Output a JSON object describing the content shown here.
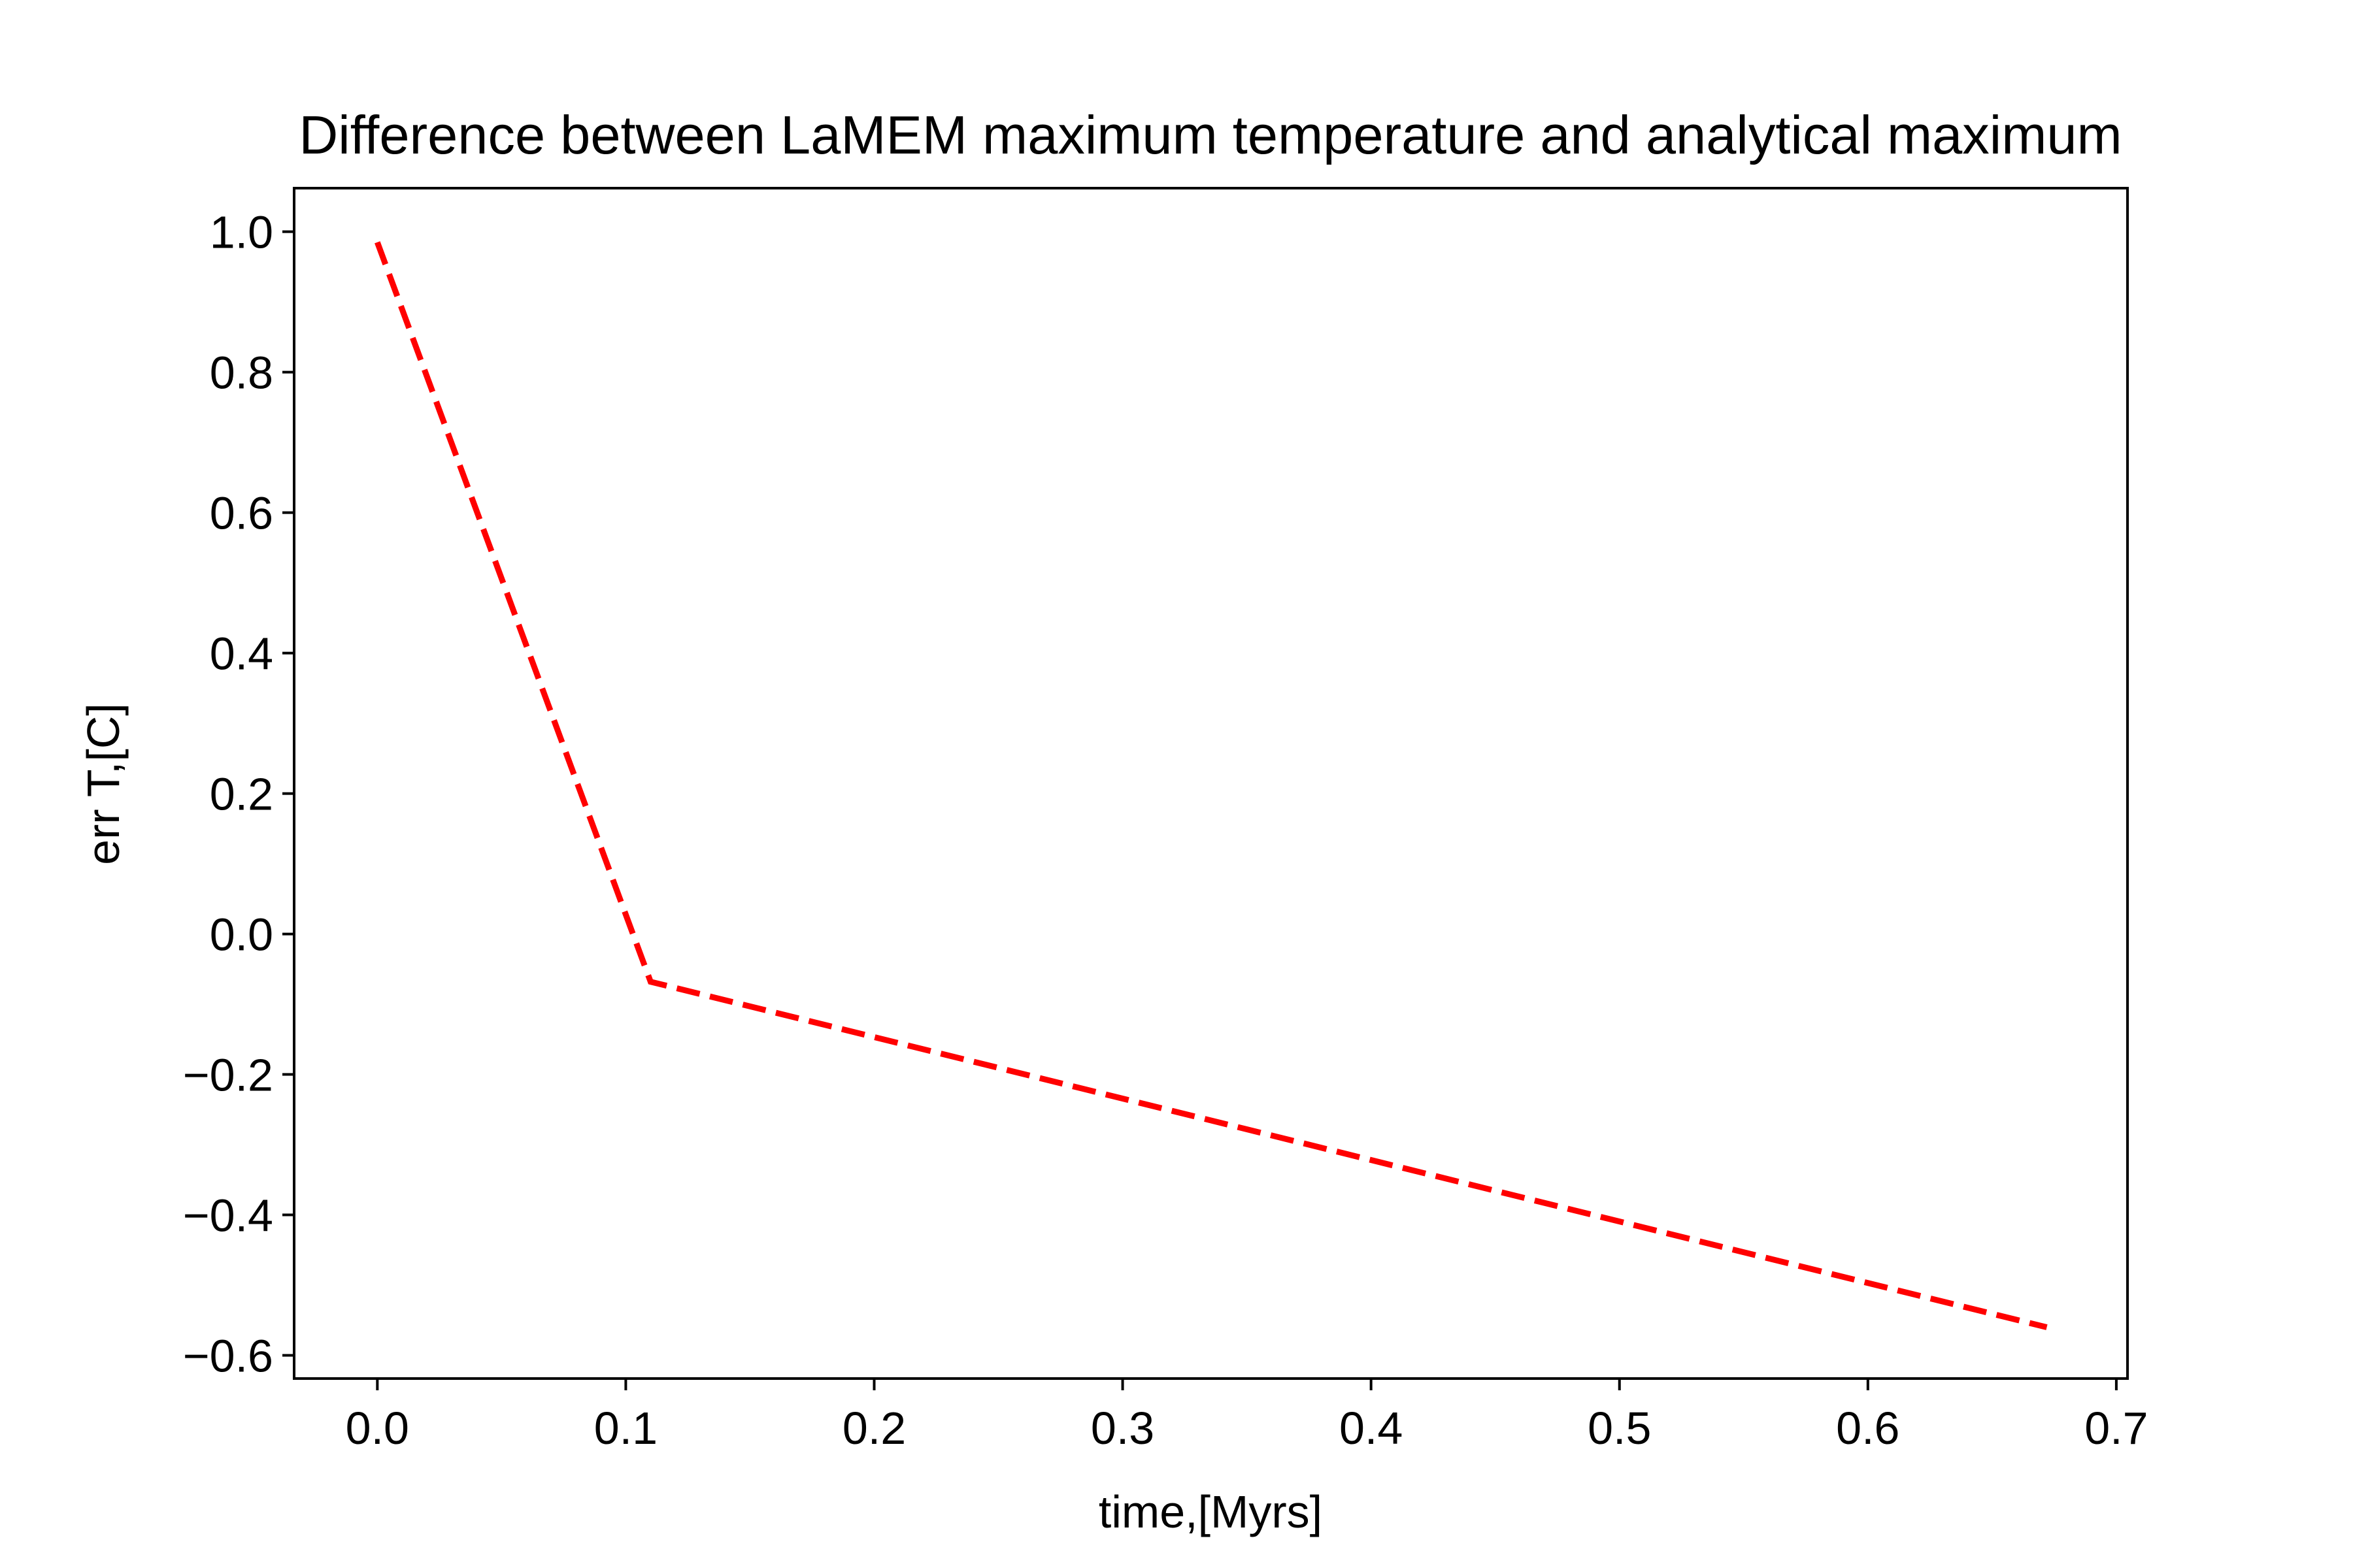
{
  "chart_data": {
    "type": "line",
    "title": "Difference between LaMEM maximum temperature and analytical maximum",
    "xlabel": "time,[Myrs]",
    "ylabel": "err T,[C]",
    "xlim": [
      -0.0335,
      0.7045
    ],
    "ylim": [
      -0.633,
      1.062
    ],
    "x_ticks": [
      0.0,
      0.1,
      0.2,
      0.3,
      0.4,
      0.5,
      0.6,
      0.7
    ],
    "x_tick_labels": [
      "0.0",
      "0.1",
      "0.2",
      "0.3",
      "0.4",
      "0.5",
      "0.6",
      "0.7"
    ],
    "y_ticks": [
      -0.6,
      -0.4,
      -0.2,
      0.0,
      0.2,
      0.4,
      0.6,
      0.8,
      1.0
    ],
    "y_tick_labels": [
      "−0.6",
      "−0.4",
      "−0.2",
      "0.0",
      "0.2",
      "0.4",
      "0.6",
      "0.8",
      "1.0"
    ],
    "grid": false,
    "series": [
      {
        "x": [
          0.0,
          0.11,
          0.672
        ],
        "y": [
          0.985,
          -0.068,
          -0.56
        ],
        "color": "#ff0000",
        "line_style": "dashed"
      }
    ]
  }
}
